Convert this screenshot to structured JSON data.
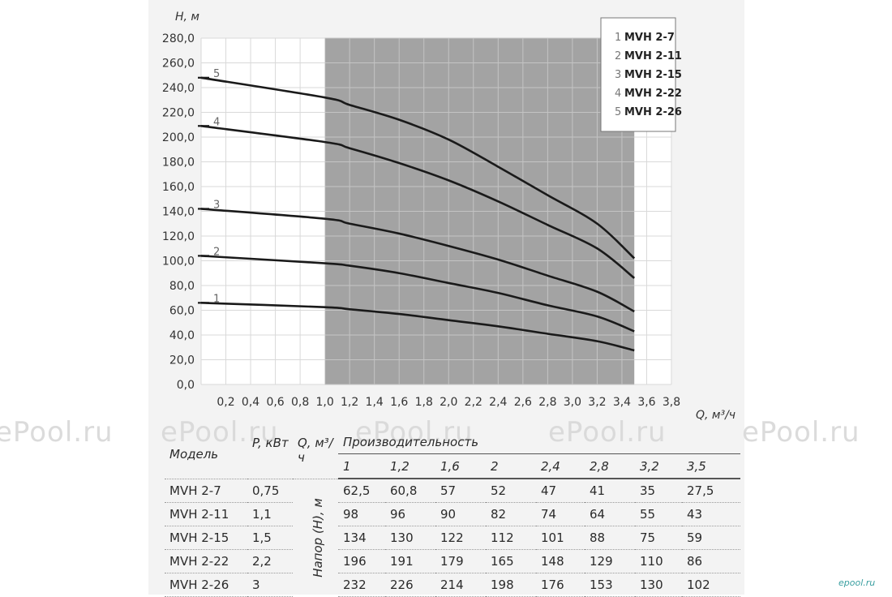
{
  "watermark": "ePool.ru",
  "brand_logo": "epool.ru",
  "chart_data": {
    "type": "line",
    "xlabel": "Q, м³/ч",
    "ylabel": "Н, м",
    "xlim": [
      0,
      3.8
    ],
    "ylim": [
      0,
      280
    ],
    "x_ticks": [
      "0,2",
      "0,4",
      "0,6",
      "0,8",
      "1,0",
      "1,2",
      "1,4",
      "1,6",
      "1,8",
      "2,0",
      "2,2",
      "2,4",
      "2,6",
      "2,8",
      "3,0",
      "3,2",
      "3,4",
      "3,6",
      "3,8"
    ],
    "y_ticks": [
      "0,0",
      "20,0",
      "40,0",
      "60,0",
      "80,0",
      "100,0",
      "120,0",
      "140,0",
      "160,0",
      "180,0",
      "200,0",
      "220,0",
      "240,0",
      "260,0",
      "280,0"
    ],
    "grid": true,
    "legend_position": "top-right",
    "shaded_range": [
      1.0,
      3.5
    ],
    "shaded_color": "#a3a3a3",
    "line_color": "#1a1a1a",
    "series": [
      {
        "name": "MVH 2-7",
        "index": "1",
        "x": [
          0,
          1,
          1.2,
          1.6,
          2,
          2.4,
          2.8,
          3.2,
          3.5
        ],
        "values": [
          66,
          62.5,
          60.8,
          57,
          52,
          47,
          41,
          35,
          27.5
        ]
      },
      {
        "name": "MVH 2-11",
        "index": "2",
        "x": [
          0,
          1,
          1.2,
          1.6,
          2,
          2.4,
          2.8,
          3.2,
          3.5
        ],
        "values": [
          104,
          98,
          96,
          90,
          82,
          74,
          64,
          55,
          43
        ]
      },
      {
        "name": "MVH 2-15",
        "index": "3",
        "x": [
          0,
          1,
          1.2,
          1.6,
          2,
          2.4,
          2.8,
          3.2,
          3.5
        ],
        "values": [
          142,
          134,
          130,
          122,
          112,
          101,
          88,
          75,
          59
        ]
      },
      {
        "name": "MVH 2-22",
        "index": "4",
        "x": [
          0,
          1,
          1.2,
          1.6,
          2,
          2.4,
          2.8,
          3.2,
          3.5
        ],
        "values": [
          209,
          196,
          191,
          179,
          165,
          148,
          129,
          110,
          86
        ]
      },
      {
        "name": "MVH 2-26",
        "index": "5",
        "x": [
          0,
          1,
          1.2,
          1.6,
          2,
          2.4,
          2.8,
          3.2,
          3.5
        ],
        "values": [
          248,
          232,
          226,
          214,
          198,
          176,
          153,
          130,
          102
        ]
      }
    ]
  },
  "table": {
    "col_model": "Модель",
    "col_power": "P, кВт",
    "col_flow": "Q, м³/ч",
    "col_head_label": "Напор (Н), м",
    "col_perf": "Производительность",
    "flows": [
      "1",
      "1,2",
      "1,6",
      "2",
      "2,4",
      "2,8",
      "3,2",
      "3,5"
    ],
    "rows": [
      {
        "model": "MVH 2-7",
        "power": "0,75",
        "values": [
          "62,5",
          "60,8",
          "57",
          "52",
          "47",
          "41",
          "35",
          "27,5"
        ]
      },
      {
        "model": "MVH 2-11",
        "power": "1,1",
        "values": [
          "98",
          "96",
          "90",
          "82",
          "74",
          "64",
          "55",
          "43"
        ]
      },
      {
        "model": "MVH 2-15",
        "power": "1,5",
        "values": [
          "134",
          "130",
          "122",
          "112",
          "101",
          "88",
          "75",
          "59"
        ]
      },
      {
        "model": "MVH 2-22",
        "power": "2,2",
        "values": [
          "196",
          "191",
          "179",
          "165",
          "148",
          "129",
          "110",
          "86"
        ]
      },
      {
        "model": "MVH 2-26",
        "power": "3",
        "values": [
          "232",
          "226",
          "214",
          "198",
          "176",
          "153",
          "130",
          "102"
        ]
      }
    ]
  }
}
